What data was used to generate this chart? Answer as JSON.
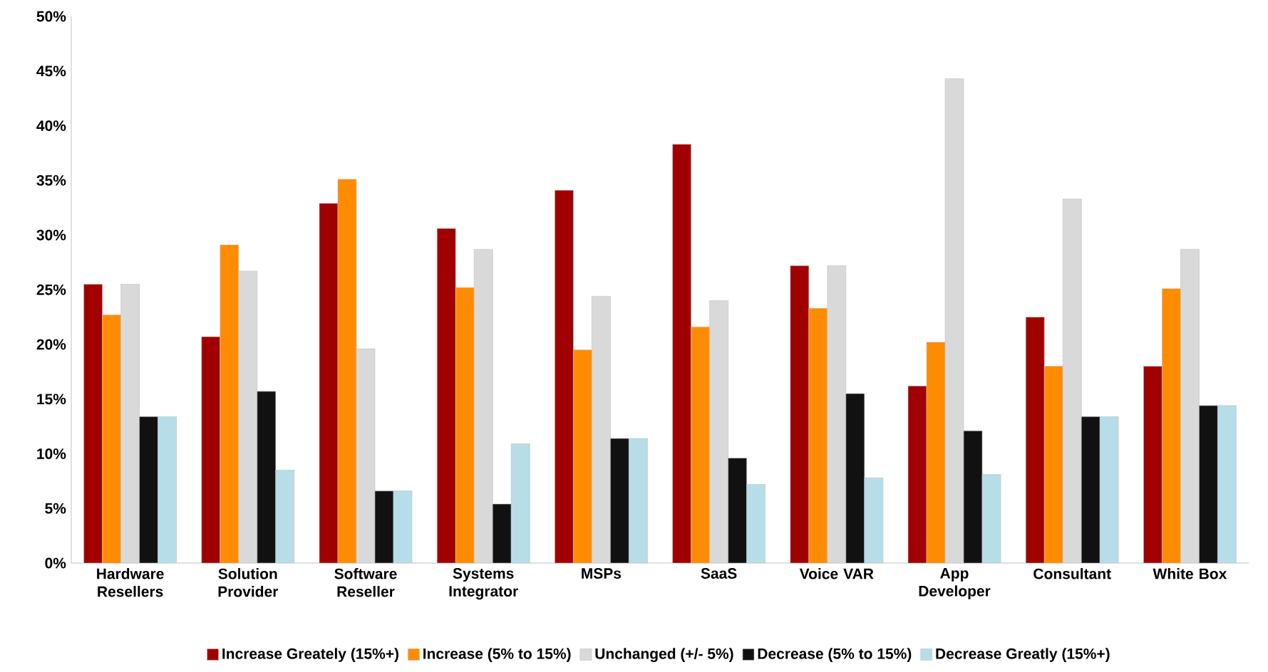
{
  "chart_data": {
    "type": "bar",
    "categories": [
      "Hardware Resellers",
      "Solution Provider",
      "Software Reseller",
      "Systems Integrator",
      "MSPs",
      "SaaS",
      "Voice VAR",
      "App Developer",
      "Consultant",
      "White Box"
    ],
    "series": [
      {
        "name": "Increase Greately (15%+)",
        "color": "#a00000",
        "values": [
          25.5,
          20.7,
          32.9,
          30.6,
          34.1,
          38.3,
          27.2,
          16.2,
          22.5,
          18.0
        ]
      },
      {
        "name": "Increase (5% to 15%)",
        "color": "#ff8c00",
        "values": [
          22.7,
          29.1,
          35.1,
          25.2,
          19.5,
          21.6,
          23.3,
          20.2,
          18.0,
          25.1
        ]
      },
      {
        "name": "Unchanged (+/- 5%)",
        "color": "#d9d9d9",
        "values": [
          25.5,
          26.7,
          19.6,
          28.7,
          24.4,
          24.0,
          27.2,
          44.3,
          33.3,
          28.7
        ]
      },
      {
        "name": "Decrease (5% to 15%)",
        "color": "#111111",
        "values": [
          13.4,
          15.7,
          6.6,
          5.4,
          11.4,
          9.6,
          15.5,
          12.1,
          13.4,
          14.4
        ]
      },
      {
        "name": "Decrease Greatly (15%+)",
        "color": "#b7dde8",
        "values": [
          13.4,
          8.5,
          6.6,
          10.9,
          11.4,
          7.2,
          7.8,
          8.1,
          13.4,
          14.4
        ]
      }
    ],
    "ylim": [
      0,
      50
    ],
    "yticks": [
      {
        "value": 0,
        "label": "0%"
      },
      {
        "value": 5,
        "label": "5%"
      },
      {
        "value": 10,
        "label": "10%"
      },
      {
        "value": 15,
        "label": "15%"
      },
      {
        "value": 20,
        "label": "20%"
      },
      {
        "value": 25,
        "label": "25%"
      },
      {
        "value": 30,
        "label": "30%"
      },
      {
        "value": 35,
        "label": "35%"
      },
      {
        "value": 40,
        "label": "40%"
      },
      {
        "value": 45,
        "label": "45%"
      },
      {
        "value": 50,
        "label": "50%"
      }
    ],
    "legend": "bottom",
    "grid": false
  }
}
